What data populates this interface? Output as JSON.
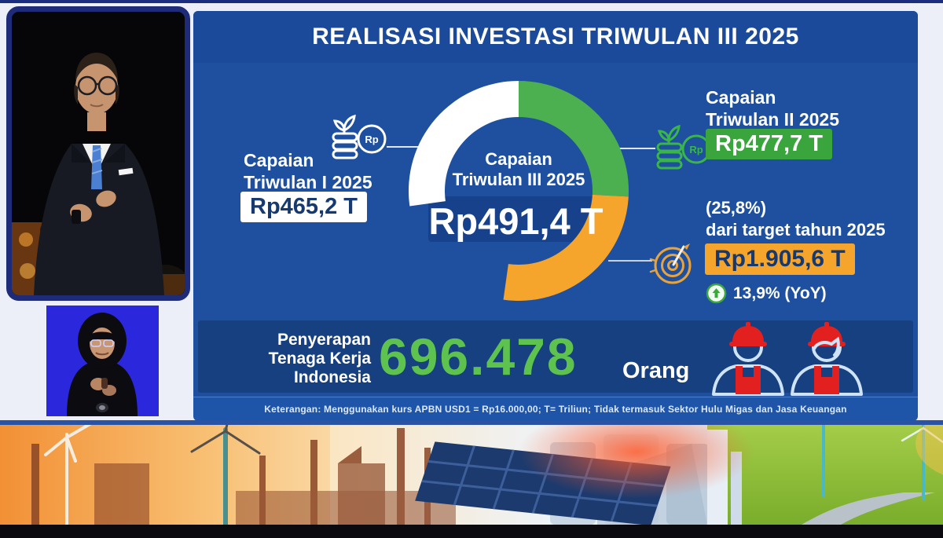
{
  "header": {
    "title": "REALISASI INVESTASI TRIWULAN III 2025"
  },
  "chart_data": {
    "type": "donut",
    "title": "REALISASI INVESTASI TRIWULAN III 2025",
    "unit": "Rp Triliun",
    "target_total_t": 1905.6,
    "segments": [
      {
        "id": "q1",
        "label": "Capaian Triwulan I 2025",
        "value_t": 465.2,
        "display": "Rp465,2 T",
        "color": "#ffffff",
        "start_deg": 262,
        "end_deg": 360
      },
      {
        "id": "q2",
        "label": "Capaian Triwulan II 2025",
        "value_t": 477.7,
        "display": "Rp477,7 T",
        "color": "#4caf50",
        "start_deg": 0,
        "end_deg": 93
      },
      {
        "id": "q3",
        "label": "Capaian Triwulan III 2025",
        "value_t": 491.4,
        "display": "Rp491,4 T",
        "color": "#f5a42c",
        "start_deg": 93,
        "end_deg": 188
      }
    ],
    "center_label": "Capaian Triwulan III 2025",
    "center_value": "Rp491,4 T",
    "annotations": {
      "percent_of_target": "(25,8%)",
      "target_caption": "dari target tahun 2025",
      "target_value": "Rp1.905,6 T",
      "yoy": "13,9% (YoY)"
    },
    "legend_position": "sides",
    "grid": false
  },
  "labels": {
    "q1": {
      "line1": "Capaian",
      "line2": "Triwulan I 2025",
      "value": "Rp465,2 T"
    },
    "q2": {
      "line1": "Capaian",
      "line2": "Triwulan II 2025",
      "value": "Rp477,7 T"
    },
    "center": {
      "line1": "Capaian",
      "line2": "Triwulan III 2025",
      "value": "Rp491,4 T"
    },
    "target": {
      "percent": "(25,8%)",
      "caption": "dari target tahun 2025",
      "value": "Rp1.905,6 T"
    },
    "yoy": "13,9% (YoY)"
  },
  "employment": {
    "line1": "Penyerapan",
    "line2": "Tenaga Kerja",
    "line3": "Indonesia",
    "value": "696.478",
    "unit": "Orang"
  },
  "footnote": "Keterangan: Menggunakan kurs APBN USD1 = Rp16.000,00; T= Triliun; Tidak termasuk Sektor Hulu Migas dan Jasa Keuangan",
  "icons": [
    "money-coins-rp-icon-white",
    "money-coins-rp-icon-green",
    "target-dart-icon",
    "arrow-up-circle-icon",
    "worker-male-icon",
    "worker-female-icon"
  ],
  "colors": {
    "panel_blue": "#1e509f",
    "strip_blue": "#16407f",
    "green": "#4caf50",
    "orange": "#f5a42c",
    "number_green": "#5ec24f",
    "badge_text_navy": "#16396f"
  }
}
